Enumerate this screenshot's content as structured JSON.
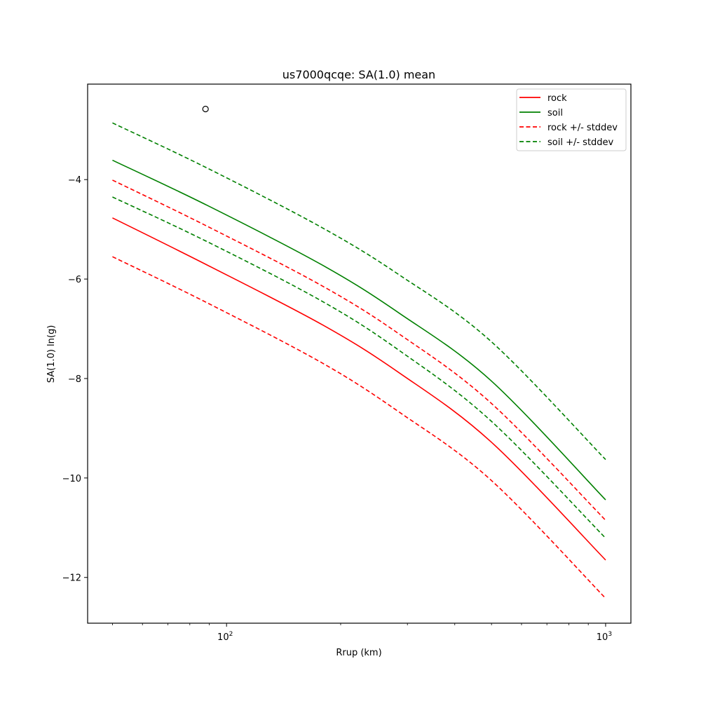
{
  "chart_data": {
    "type": "line",
    "title": "us7000qcqe: SA(1.0) mean",
    "xlabel": "Rrup (km)",
    "ylabel": "SA(1.0) ln(g)",
    "xscale": "log",
    "xlim": [
      43,
      1166
    ],
    "ylim": [
      -12.92,
      -2.08
    ],
    "grid": false,
    "legend_position": "upper right",
    "x_ticks": [
      {
        "value": 100,
        "label": "10",
        "exp": "2"
      },
      {
        "value": 1000,
        "label": "10",
        "exp": "3"
      }
    ],
    "x_minor_ticks": [
      50,
      60,
      70,
      80,
      90,
      200,
      300,
      400,
      500,
      600,
      700,
      800,
      900
    ],
    "y_ticks": [
      {
        "value": -4,
        "label": "−4"
      },
      {
        "value": -6,
        "label": "−6"
      },
      {
        "value": -8,
        "label": "−8"
      },
      {
        "value": -10,
        "label": "−10"
      },
      {
        "value": -12,
        "label": "−12"
      }
    ],
    "x": [
      50,
      89,
      179,
      286,
      498,
      1000
    ],
    "series": [
      {
        "name": "rock",
        "color": "#ff0000",
        "style": "solid",
        "values": [
          -4.77,
          -5.72,
          -6.92,
          -7.89,
          -9.27,
          -11.65
        ]
      },
      {
        "name": "soil",
        "color": "#008000",
        "style": "solid",
        "values": [
          -3.61,
          -4.52,
          -5.72,
          -6.69,
          -8.04,
          -10.44
        ]
      },
      {
        "name": "rock + stddev",
        "legend": "rock +/- stddev",
        "color": "#ff0000",
        "style": "dashed",
        "values": [
          -4.01,
          -4.94,
          -6.14,
          -7.11,
          -8.49,
          -10.85
        ]
      },
      {
        "name": "rock - stddev",
        "legend": "rock +/- stddev",
        "color": "#ff0000",
        "style": "dashed",
        "values": [
          -5.55,
          -6.48,
          -7.69,
          -8.68,
          -10.04,
          -12.42
        ]
      },
      {
        "name": "soil + stddev",
        "legend": "soil +/- stddev",
        "color": "#008000",
        "style": "dashed",
        "values": [
          -2.86,
          -3.77,
          -4.97,
          -5.92,
          -7.25,
          -9.63
        ]
      },
      {
        "name": "soil - stddev",
        "legend": "soil +/- stddev",
        "color": "#008000",
        "style": "dashed",
        "values": [
          -4.35,
          -5.25,
          -6.45,
          -7.44,
          -8.85,
          -11.21
        ]
      }
    ],
    "markers": [
      {
        "x": 88,
        "y": -2.58,
        "shape": "circle",
        "fill": "none",
        "edge_color": "#000000"
      }
    ],
    "legend": [
      {
        "label": "rock",
        "color": "#ff0000",
        "style": "solid"
      },
      {
        "label": "soil",
        "color": "#008000",
        "style": "solid"
      },
      {
        "label": "rock +/- stddev",
        "color": "#ff0000",
        "style": "dashed"
      },
      {
        "label": "soil +/- stddev",
        "color": "#008000",
        "style": "dashed"
      }
    ]
  }
}
